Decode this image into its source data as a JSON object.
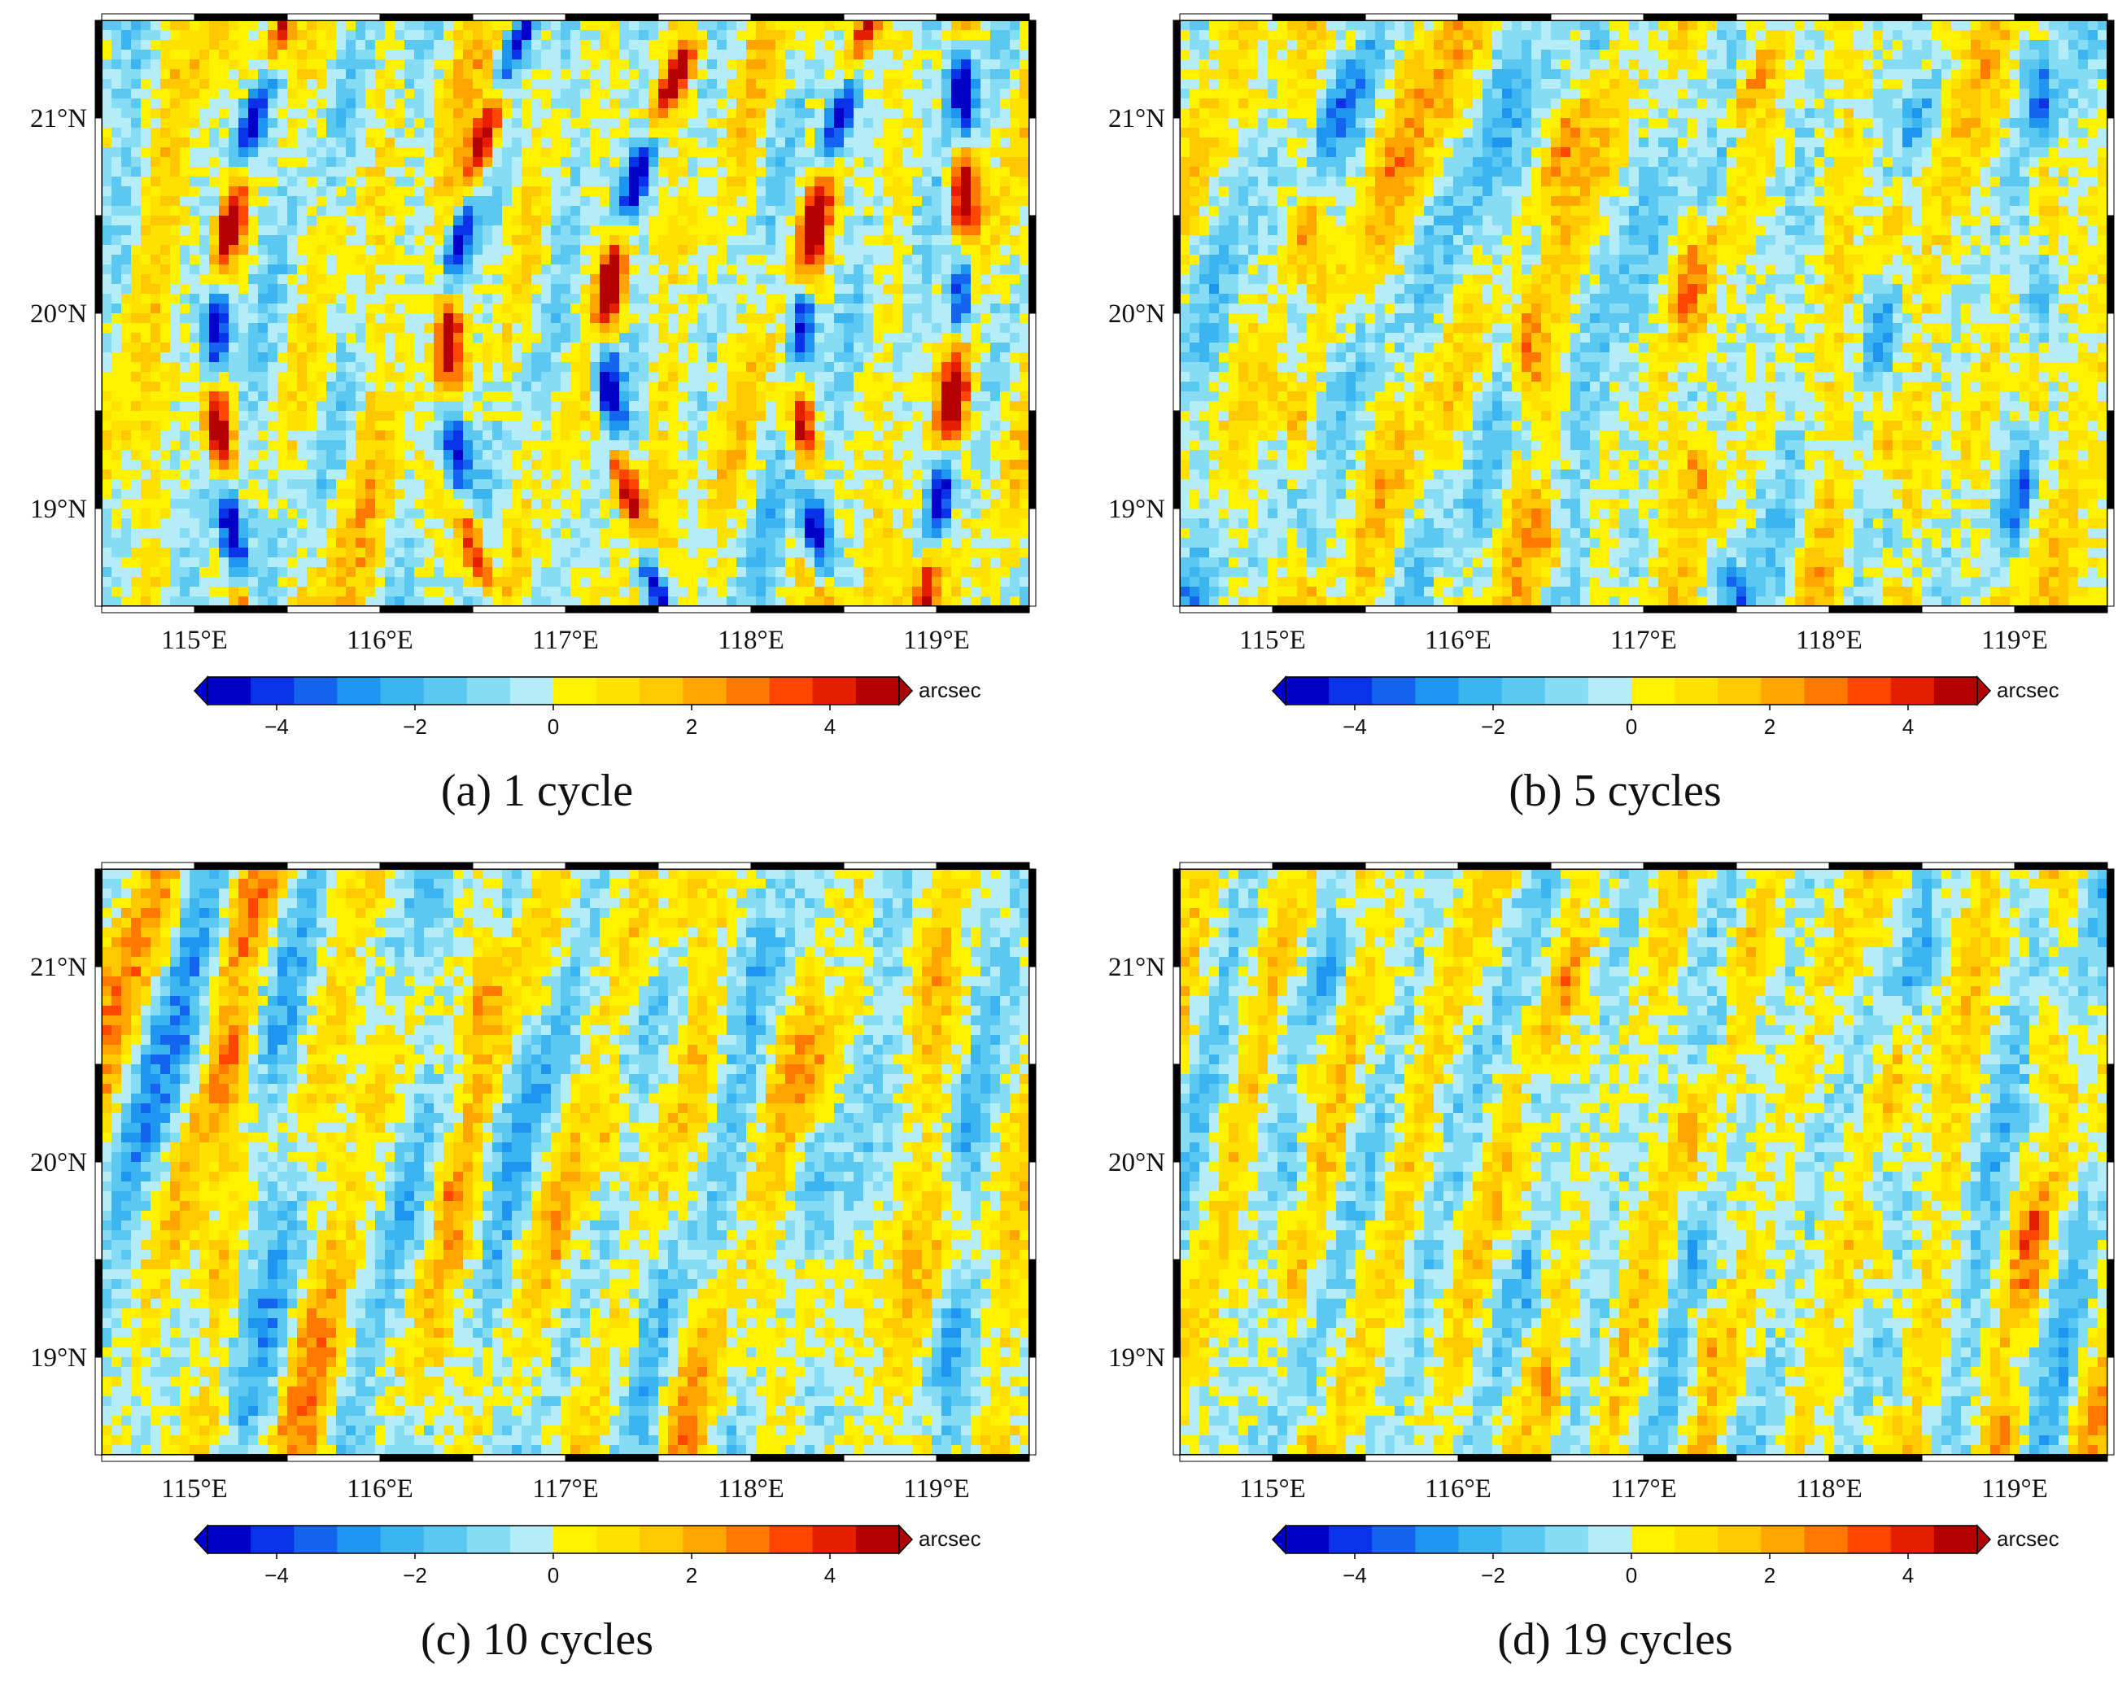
{
  "figure": {
    "panels": [
      {
        "id": "a",
        "caption": "(a) 1 cycle",
        "seed": 11,
        "ridge_amp": 1.0
      },
      {
        "id": "b",
        "caption": "(b) 5 cycles",
        "seed": 29,
        "ridge_amp": 0.35
      },
      {
        "id": "c",
        "caption": "(c) 10 cycles",
        "seed": 47,
        "ridge_amp": 0.18
      },
      {
        "id": "d",
        "caption": "(d) 19 cycles",
        "seed": 83,
        "ridge_amp": 0.25
      }
    ],
    "colors": {
      "scale": [
        "#0000c8",
        "#0a32e6",
        "#1464f0",
        "#1e96f0",
        "#3cb4f0",
        "#5ac8f0",
        "#87dcf5",
        "#b4ecf8",
        "#fff200",
        "#ffe100",
        "#ffc800",
        "#ffa500",
        "#ff7800",
        "#ff4600",
        "#e61e00",
        "#b40000"
      ],
      "frame": "#000000"
    }
  },
  "chart_data": [
    {
      "type": "heatmap",
      "title": "(a) 1 cycle",
      "x_ticks": [
        "115°E",
        "116°E",
        "117°E",
        "118°E",
        "119°E"
      ],
      "y_ticks": [
        "21°N",
        "20°N",
        "19°N"
      ],
      "xlim": [
        114.5,
        119.5
      ],
      "ylim": [
        18.5,
        21.5
      ],
      "colorbar": {
        "ticks": [
          "−4",
          "−2",
          "0",
          "2",
          "4"
        ],
        "unit": "arcsec",
        "range": [
          -5,
          5
        ]
      }
    },
    {
      "type": "heatmap",
      "title": "(b) 5 cycles",
      "x_ticks": [
        "115°E",
        "116°E",
        "117°E",
        "118°E",
        "119°E"
      ],
      "y_ticks": [
        "21°N",
        "20°N",
        "19°N"
      ],
      "xlim": [
        114.5,
        119.5
      ],
      "ylim": [
        18.5,
        21.5
      ],
      "colorbar": {
        "ticks": [
          "−4",
          "−2",
          "0",
          "2",
          "4"
        ],
        "unit": "arcsec",
        "range": [
          -5,
          5
        ]
      }
    },
    {
      "type": "heatmap",
      "title": "(c) 10 cycles",
      "x_ticks": [
        "115°E",
        "116°E",
        "117°E",
        "118°E",
        "119°E"
      ],
      "y_ticks": [
        "21°N",
        "20°N",
        "19°N"
      ],
      "xlim": [
        114.5,
        119.5
      ],
      "ylim": [
        18.5,
        21.5
      ],
      "colorbar": {
        "ticks": [
          "−4",
          "−2",
          "0",
          "2",
          "4"
        ],
        "unit": "arcsec",
        "range": [
          -5,
          5
        ]
      }
    },
    {
      "type": "heatmap",
      "title": "(d) 19 cycles",
      "x_ticks": [
        "115°E",
        "116°E",
        "117°E",
        "118°E",
        "119°E"
      ],
      "y_ticks": [
        "21°N",
        "20°N",
        "19°N"
      ],
      "xlim": [
        114.5,
        119.5
      ],
      "ylim": [
        18.5,
        21.5
      ],
      "colorbar": {
        "ticks": [
          "−4",
          "−2",
          "0",
          "2",
          "4"
        ],
        "unit": "arcsec",
        "range": [
          -5,
          5
        ]
      }
    }
  ]
}
